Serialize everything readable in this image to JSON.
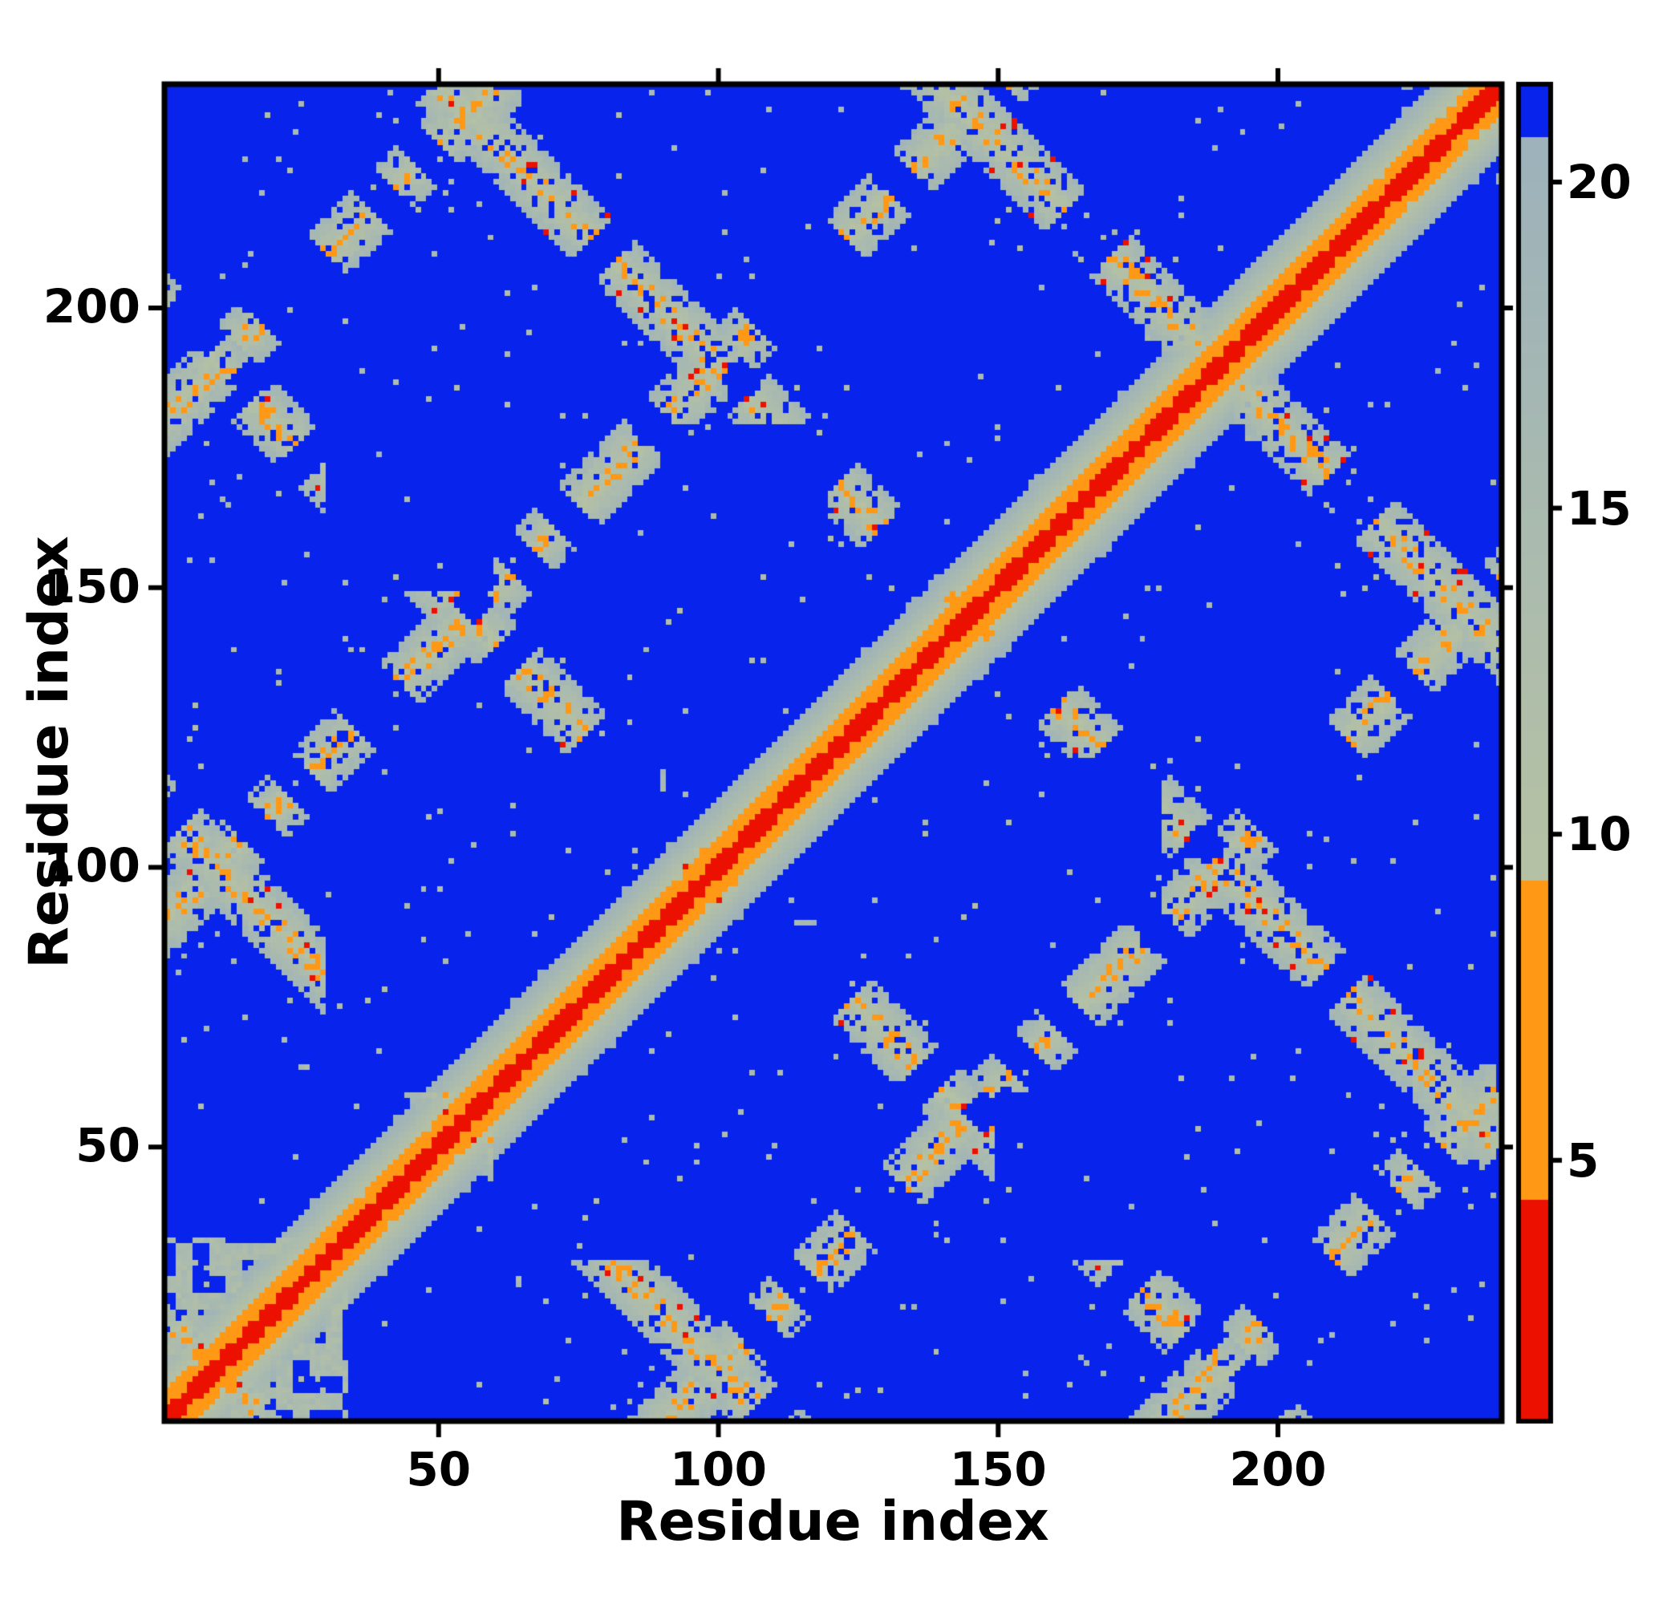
{
  "chart_data": {
    "type": "heatmap",
    "title": "",
    "xlabel": "Residue index",
    "ylabel": "Residue index",
    "x_range": [
      1,
      240
    ],
    "y_range": [
      1,
      240
    ],
    "x_ticks": [
      50,
      100,
      150,
      200
    ],
    "y_ticks": [
      50,
      100,
      150,
      200
    ],
    "colorbar_ticks": [
      5,
      10,
      15,
      20
    ],
    "value_range": [
      1,
      21.5
    ],
    "n_residues": 240,
    "grid": false,
    "legend_position": "colorbar-right",
    "colormap": {
      "red": "#ec1000",
      "orange": "#ff9814",
      "gray_start": "#b6c2a4",
      "gray_end": "#9db2bc",
      "blue": "#0823eb",
      "red_max": 4.4,
      "orange_max": 9.3,
      "gray_max": 20.7
    },
    "pattern": {
      "description": "Symmetric protein residue-residue distance map: bright red main diagonal (small distances) flanked by orange then gray bands on a blue (far) background; repeating antiparallel-contact lattice of gray anti-diagonal and diagonal-offset streaks with period ~90 residues, dotted with orange mid-range contacts, blue pinholes and a mottled cluster near the origin",
      "diagonal_slope": 1.55,
      "diagonal_jitter": 1.2,
      "lattice_period": 90,
      "lattice_phase": 20,
      "lattice_half_width": 8,
      "speckle_orange_prob": 0.22,
      "red_speckle_prob": 0.02,
      "pinhole_prob": 0.13,
      "gate_threshold": 0.28,
      "patch_threshold": 0.18,
      "corner_cluster_size": 34,
      "corner_cluster_prob": 0.45,
      "sparse_dot_prob": 0.008,
      "seed": 1337
    }
  }
}
